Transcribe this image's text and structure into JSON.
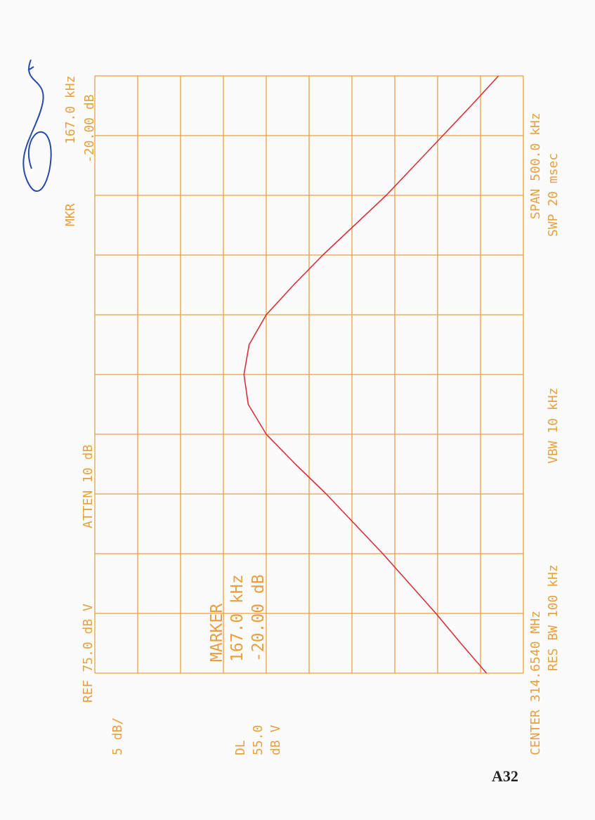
{
  "chart_data": {
    "type": "line",
    "annotations": [
      "REF 75.0 dB V",
      "ATTEN 10 dB",
      "MKR",
      "167.0 kHz",
      "-20.00 dB",
      "5 dB/",
      "DL",
      "55.0",
      "dB V",
      "CENTER 314.6540 MHz",
      "RES BW 100 kHz",
      "VBW 10 kHz",
      "SPAN 500.0 kHz",
      "SWP 20 msec",
      "MARKER",
      "167.0 kHz",
      "-20.00 dB"
    ],
    "x": [
      -250,
      -225,
      -200,
      -175,
      -150,
      -125,
      -100,
      -75,
      -50,
      -25,
      0,
      25,
      50,
      75,
      100,
      125,
      150,
      175,
      200,
      225,
      250
    ],
    "values": [
      29.3,
      32.3,
      35.2,
      38.3,
      41.4,
      44.7,
      48.0,
      51.6,
      55.0,
      57.1,
      57.6,
      57.0,
      55.0,
      51.8,
      48.4,
      44.7,
      41.0,
      37.7,
      34.4,
      31.1,
      27.9
    ],
    "color": "#d8303a",
    "xlim": [
      -250,
      250
    ],
    "xticks": [
      -250,
      -200,
      -150,
      -100,
      -50,
      0,
      50,
      100,
      150,
      200,
      250
    ],
    "ylim": [
      75,
      25
    ],
    "yticks": [
      75,
      70,
      65,
      60,
      55,
      50,
      45,
      40,
      35,
      30,
      25
    ],
    "grid": true,
    "grid_color": "#eaa040"
  },
  "page_label": "A32"
}
